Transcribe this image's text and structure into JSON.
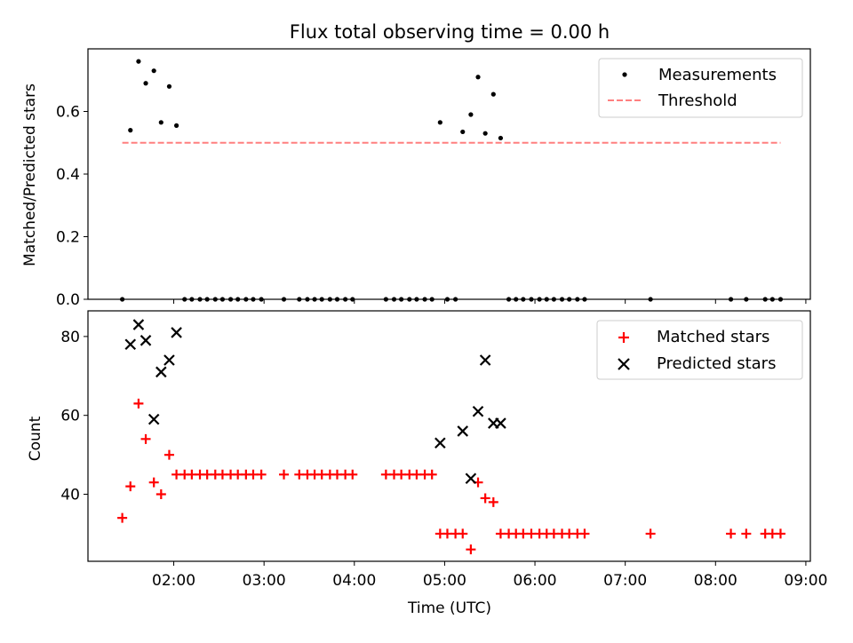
{
  "chart_data": [
    {
      "type": "scatter",
      "title": "Flux total observing time = 0.00 h",
      "xlabel": "",
      "ylabel": "Matched/Predicted stars",
      "xlim": [
        1.05,
        9.05
      ],
      "ylim": [
        0,
        0.8
      ],
      "yticks": [
        "0.0",
        "0.2",
        "0.4",
        "0.6"
      ],
      "ytick_values": [
        0.0,
        0.2,
        0.4,
        0.6
      ],
      "xtick_values": [
        2,
        3,
        4,
        5,
        6,
        7,
        8,
        9
      ],
      "legend": {
        "position": "upper right",
        "entries": [
          "Measurements",
          "Threshold"
        ]
      },
      "series": [
        {
          "name": "Measurements",
          "color": "#000000",
          "marker": "dot",
          "x": [
            1.43,
            1.52,
            1.61,
            1.69,
            1.78,
            1.86,
            1.95,
            2.03,
            2.12,
            2.2,
            2.29,
            2.37,
            2.46,
            2.54,
            2.63,
            2.71,
            2.8,
            2.88,
            2.97,
            3.22,
            3.39,
            3.48,
            3.56,
            3.64,
            3.73,
            3.81,
            3.9,
            3.98,
            4.35,
            4.44,
            4.52,
            4.61,
            4.69,
            4.78,
            4.86,
            4.95,
            5.03,
            5.12,
            5.2,
            5.29,
            5.37,
            5.45,
            5.54,
            5.62,
            5.71,
            5.79,
            5.87,
            5.96,
            6.05,
            6.13,
            6.21,
            6.3,
            6.38,
            6.47,
            6.55,
            7.28,
            8.17,
            8.34,
            8.55,
            8.63,
            8.72
          ],
          "y": [
            0.0,
            0.54,
            0.76,
            0.69,
            0.73,
            0.565,
            0.68,
            0.555,
            0.0,
            0.0,
            0.0,
            0.0,
            0.0,
            0.0,
            0.0,
            0.0,
            0.0,
            0.0,
            0.0,
            0.0,
            0.0,
            0.0,
            0.0,
            0.0,
            0.0,
            0.0,
            0.0,
            0.0,
            0.0,
            0.0,
            0.0,
            0.0,
            0.0,
            0.0,
            0.0,
            0.565,
            0.0,
            0.0,
            0.535,
            0.59,
            0.71,
            0.53,
            0.655,
            0.515,
            0.0,
            0.0,
            0.0,
            0.0,
            0.0,
            0.0,
            0.0,
            0.0,
            0.0,
            0.0,
            0.0,
            0.0,
            0.0,
            0.0,
            0.0,
            0.0,
            0.0
          ]
        },
        {
          "name": "Threshold",
          "color": "#ff7f7f",
          "style": "dashed",
          "x": [
            1.43,
            8.72
          ],
          "y": [
            0.5,
            0.5
          ]
        }
      ]
    },
    {
      "type": "scatter",
      "title": "",
      "xlabel": "Time (UTC)",
      "ylabel": "Count",
      "xlim": [
        1.05,
        9.05
      ],
      "ylim": [
        23,
        86.5
      ],
      "yticks": [
        "40",
        "60",
        "80"
      ],
      "ytick_values": [
        40,
        60,
        80
      ],
      "xticks": [
        "02:00",
        "03:00",
        "04:00",
        "05:00",
        "06:00",
        "07:00",
        "08:00",
        "09:00"
      ],
      "xtick_values": [
        2,
        3,
        4,
        5,
        6,
        7,
        8,
        9
      ],
      "legend": {
        "position": "upper right",
        "entries": [
          "Matched stars",
          "Predicted stars"
        ]
      },
      "series": [
        {
          "name": "Matched stars",
          "color": "#ff0000",
          "marker": "plus",
          "x": [
            1.43,
            1.52,
            1.61,
            1.69,
            1.78,
            1.86,
            1.95,
            2.03,
            2.12,
            2.2,
            2.29,
            2.37,
            2.46,
            2.54,
            2.63,
            2.71,
            2.8,
            2.88,
            2.97,
            3.22,
            3.39,
            3.48,
            3.56,
            3.64,
            3.73,
            3.81,
            3.9,
            3.98,
            4.35,
            4.44,
            4.52,
            4.61,
            4.69,
            4.78,
            4.86,
            4.95,
            5.03,
            5.12,
            5.2,
            5.29,
            5.37,
            5.45,
            5.54,
            5.62,
            5.71,
            5.79,
            5.87,
            5.96,
            6.05,
            6.13,
            6.21,
            6.3,
            6.38,
            6.47,
            6.55,
            7.28,
            8.17,
            8.34,
            8.55,
            8.63,
            8.72
          ],
          "y": [
            34,
            42,
            63,
            54,
            43,
            40,
            50,
            45,
            45,
            45,
            45,
            45,
            45,
            45,
            45,
            45,
            45,
            45,
            45,
            45,
            45,
            45,
            45,
            45,
            45,
            45,
            45,
            45,
            45,
            45,
            45,
            45,
            45,
            45,
            45,
            30,
            30,
            30,
            30,
            26,
            43,
            39,
            38,
            30,
            30,
            30,
            30,
            30,
            30,
            30,
            30,
            30,
            30,
            30,
            30,
            30,
            30,
            30,
            30,
            30,
            30
          ]
        },
        {
          "name": "Predicted stars",
          "color": "#000000",
          "marker": "x",
          "x": [
            1.52,
            1.61,
            1.69,
            1.78,
            1.86,
            1.95,
            2.03,
            4.95,
            5.2,
            5.29,
            5.37,
            5.45,
            5.54,
            5.62
          ],
          "y": [
            78,
            83,
            79,
            59,
            71,
            74,
            81,
            53,
            56,
            44,
            61,
            74,
            58,
            58
          ]
        }
      ]
    }
  ]
}
